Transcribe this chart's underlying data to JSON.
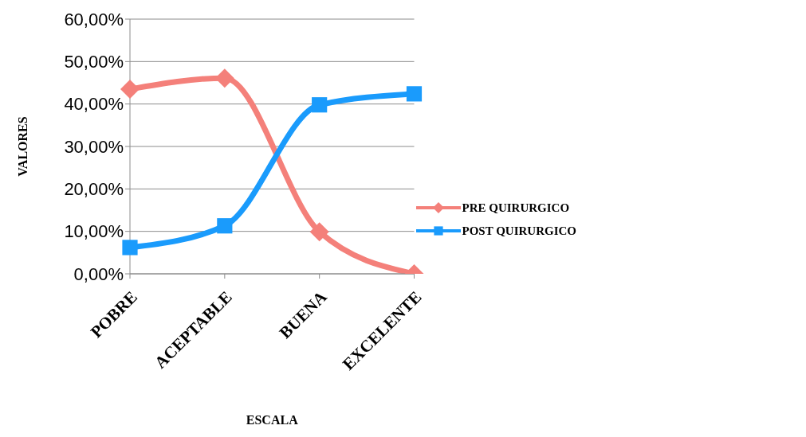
{
  "chart_data": {
    "type": "line",
    "ylabel": "VALORES",
    "xlabel": "ESCALA",
    "categories": [
      "POBRE",
      "ACEPTABLE",
      "BUENA",
      "EXCELENTE"
    ],
    "series": [
      {
        "name": "PRE QUIRURGICO",
        "color": "#f4807a",
        "marker": "diamond",
        "values": [
          43.5,
          46.1,
          9.9,
          0
        ]
      },
      {
        "name": "POST QUIRURGICO",
        "color": "#1a9bfc",
        "marker": "square",
        "values": [
          6.2,
          11.3,
          39.8,
          42.4
        ]
      }
    ],
    "ylim": [
      0,
      60
    ],
    "yticks": [
      {
        "value": 0,
        "label": "0,00%"
      },
      {
        "value": 10,
        "label": "10,00%"
      },
      {
        "value": 20,
        "label": "20,00%"
      },
      {
        "value": 30,
        "label": "30,00%"
      },
      {
        "value": 40,
        "label": "40,00%"
      },
      {
        "value": 50,
        "label": "50,00%"
      },
      {
        "value": 60,
        "label": "60,00%"
      }
    ],
    "grid": "y",
    "legend": "right"
  }
}
